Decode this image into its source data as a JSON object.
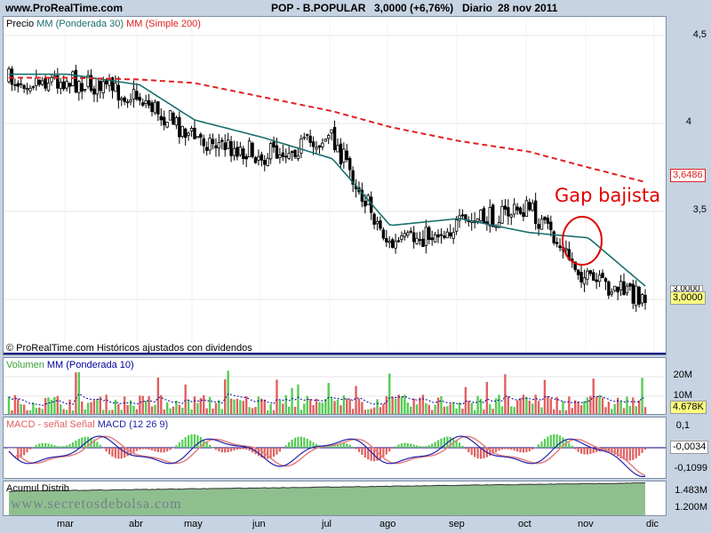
{
  "header": {
    "site": "www.ProRealTime.com",
    "instrument": "POP - B.POPULAR",
    "quote": "3,0000 (+6,76%)",
    "period": "Diario",
    "date": "28 nov 2011"
  },
  "price_panel": {
    "legend": {
      "precio": "Precio",
      "mm30": "MM (Ponderada 30)",
      "mm200": "MM (Simple 200)"
    },
    "axis_labels": [
      "4,5",
      "4",
      "3,5"
    ],
    "tags": {
      "mm200": "3,6486",
      "price_hidden": "3,0000",
      "price": "3,0000"
    },
    "footer": "© ProRealTime.com  Históricos ajustados con dividendos",
    "annotation": "Gap bajista",
    "colors": {
      "candles": "#000000",
      "mm30": "#1a6e6e",
      "mm200": "#e02020",
      "circle": "#e00000"
    }
  },
  "volume_panel": {
    "legend": {
      "volumen": "Volumen",
      "mm10": "MM (Ponderada 10)"
    },
    "axis_labels": [
      "20M",
      "10M"
    ],
    "tag": "4.678K",
    "colors": {
      "up": "#55cc55",
      "down": "#e06060",
      "ma": "#000099"
    }
  },
  "macd_panel": {
    "legend": {
      "macd_label": "MACD - señal",
      "senal": "Señal",
      "macd": "MACD (12 26 9)"
    },
    "axis_labels": [
      "0,1",
      "-0,1099"
    ],
    "tag": "-0,0034",
    "colors": {
      "macd": "#2222aa",
      "signal": "#e08080",
      "hist_up": "#55cc55",
      "hist_down": "#e06060"
    }
  },
  "acum_panel": {
    "legend": "Acumul Distrib",
    "axis_labels": [
      "1.483M",
      "1.200M"
    ],
    "watermark": "www.secretosdebolsa.com",
    "colors": {
      "fill": "#8fbf8f",
      "line": "#333333"
    }
  },
  "x_axis": {
    "months": [
      "mar",
      "abr",
      "may",
      "jun",
      "jul",
      "ago",
      "sep",
      "oct",
      "nov",
      "dic"
    ]
  },
  "chart_data": {
    "type": "line",
    "title": "POP - B.POPULAR",
    "xlabel": "",
    "ylabel": "",
    "ylim": [
      2.75,
      4.6
    ],
    "x": [
      "mar",
      "abr",
      "may",
      "jun",
      "jul",
      "ago",
      "sep",
      "oct",
      "nov",
      "dic"
    ],
    "series": [
      {
        "name": "Precio",
        "values": [
          4.25,
          4.15,
          3.92,
          3.82,
          3.92,
          3.3,
          3.42,
          3.52,
          3.1,
          3.0
        ]
      },
      {
        "name": "MM (Ponderada 30)",
        "values": [
          4.28,
          4.22,
          4.02,
          3.92,
          3.8,
          3.42,
          3.46,
          3.38,
          3.35,
          3.02
        ]
      },
      {
        "name": "MM (Simple 200)",
        "values": [
          4.26,
          4.25,
          4.23,
          4.15,
          4.07,
          3.98,
          3.9,
          3.84,
          3.75,
          3.65
        ]
      }
    ]
  }
}
